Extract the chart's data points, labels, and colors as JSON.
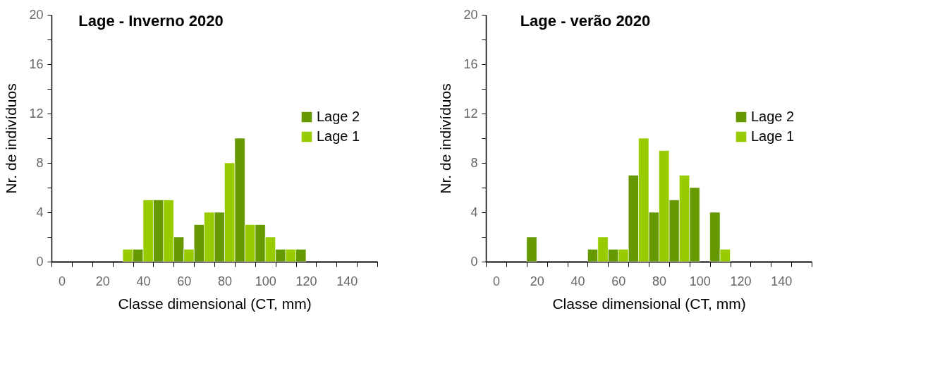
{
  "chart_data": [
    {
      "type": "bar",
      "title": "Lage - Inverno 2020",
      "xlabel": "Classe dimensional (CT, mm)",
      "ylabel": "Nr. de indivíduos",
      "categories": [
        "0",
        null,
        "20",
        null,
        "40",
        null,
        "60",
        null,
        "80",
        null,
        "100",
        null,
        "120",
        null,
        "140",
        null
      ],
      "series": [
        {
          "name": "Lage 2",
          "color": "#669900",
          "values": [
            0,
            0,
            0,
            0,
            1,
            5,
            2,
            3,
            4,
            10,
            3,
            1,
            1,
            0,
            0,
            0
          ]
        },
        {
          "name": "Lage 1",
          "color": "#99cc00",
          "values": [
            0,
            0,
            0,
            1,
            5,
            5,
            1,
            4,
            8,
            3,
            2,
            1,
            0,
            0,
            0,
            0
          ]
        }
      ],
      "ylim": [
        0,
        20
      ],
      "yticks": [
        0,
        {
          "value": 2,
          "label": null
        },
        4,
        {
          "value": 6,
          "label": null
        },
        8,
        {
          "value": 10,
          "label": null
        },
        12,
        {
          "value": 14,
          "label": null
        },
        16,
        {
          "value": 18,
          "label": null
        },
        20
      ],
      "grid": false,
      "legend": "right"
    },
    {
      "type": "bar",
      "title": "Lage - verão 2020",
      "xlabel": "Classe dimensional (CT, mm)",
      "ylabel": "Nr. de indivíduos",
      "categories": [
        "0",
        null,
        "20",
        null,
        "40",
        null,
        "60",
        null,
        "80",
        null,
        "100",
        null,
        "120",
        null,
        "140",
        null
      ],
      "series": [
        {
          "name": "Lage 2",
          "color": "#669900",
          "values": [
            0,
            0,
            2,
            0,
            0,
            1,
            1,
            7,
            4,
            5,
            6,
            4,
            0,
            0,
            0,
            0
          ]
        },
        {
          "name": "Lage 1",
          "color": "#99cc00",
          "values": [
            0,
            0,
            0,
            0,
            0,
            2,
            1,
            10,
            9,
            7,
            0,
            1,
            0,
            0,
            0,
            0
          ]
        }
      ],
      "ylim": [
        0,
        20
      ],
      "yticks": [
        0,
        {
          "value": 2,
          "label": null
        },
        4,
        {
          "value": 6,
          "label": null
        },
        8,
        {
          "value": 10,
          "label": null
        },
        12,
        {
          "value": 14,
          "label": null
        },
        16,
        {
          "value": 18,
          "label": null
        },
        20
      ],
      "grid": false,
      "legend": "right"
    }
  ]
}
